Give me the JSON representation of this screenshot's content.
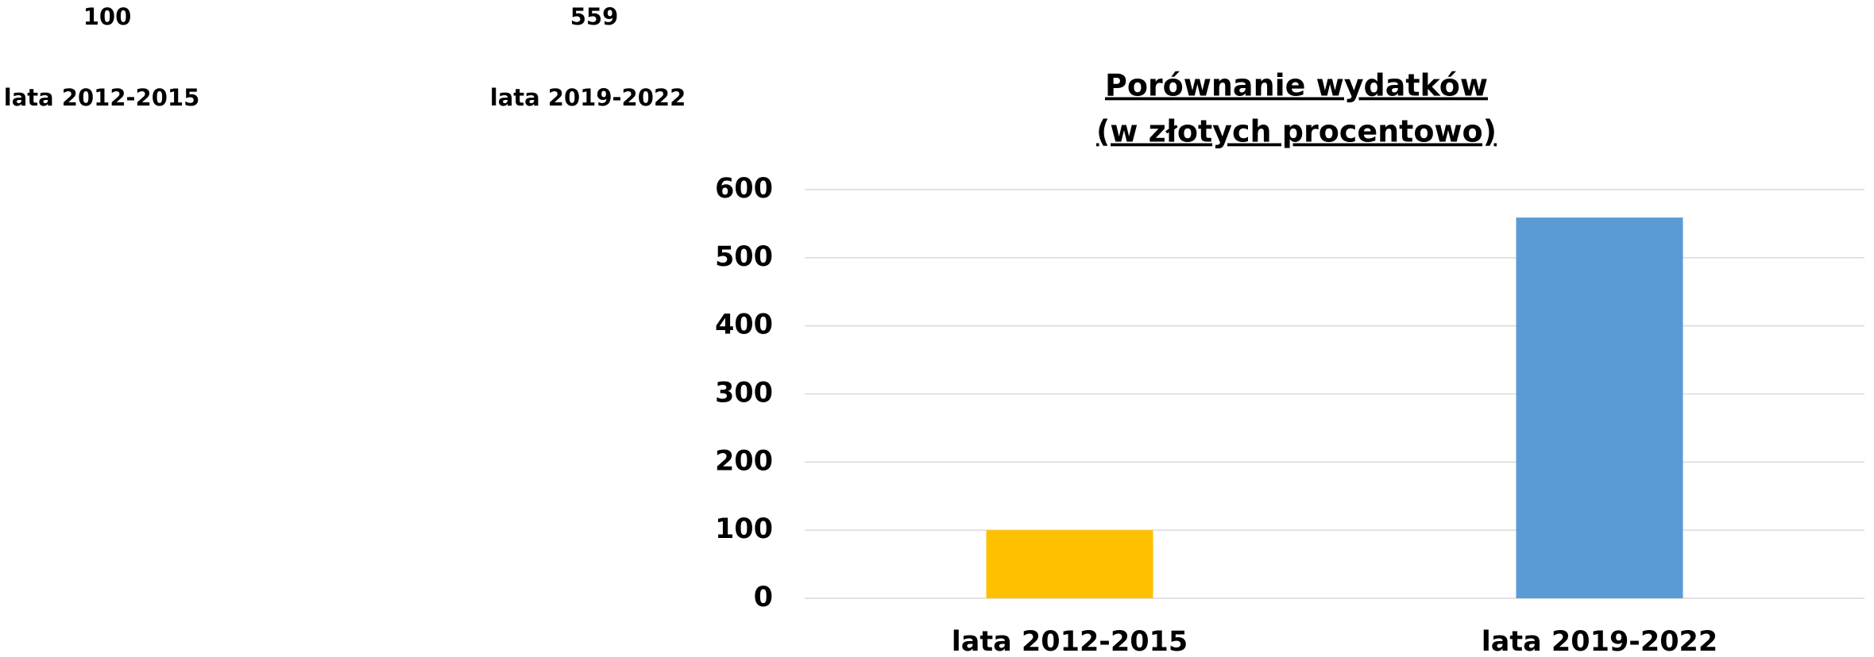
{
  "sheet": {
    "rows": [
      [
        100,
        559
      ],
      [
        "lata 2012-2015",
        "lata 2019-2022"
      ]
    ]
  },
  "chart_data": {
    "type": "bar",
    "title": "Porównanie wydatków",
    "subtitle": "(w złotych procentowo)",
    "categories": [
      "lata 2012-2015",
      "lata 2019-2022"
    ],
    "values": [
      100,
      559
    ],
    "colors": [
      "#ffc000",
      "#5b9bd5"
    ],
    "ylim": [
      0,
      600
    ],
    "yticks": [
      0,
      100,
      200,
      300,
      400,
      500,
      600
    ],
    "grid": true
  }
}
